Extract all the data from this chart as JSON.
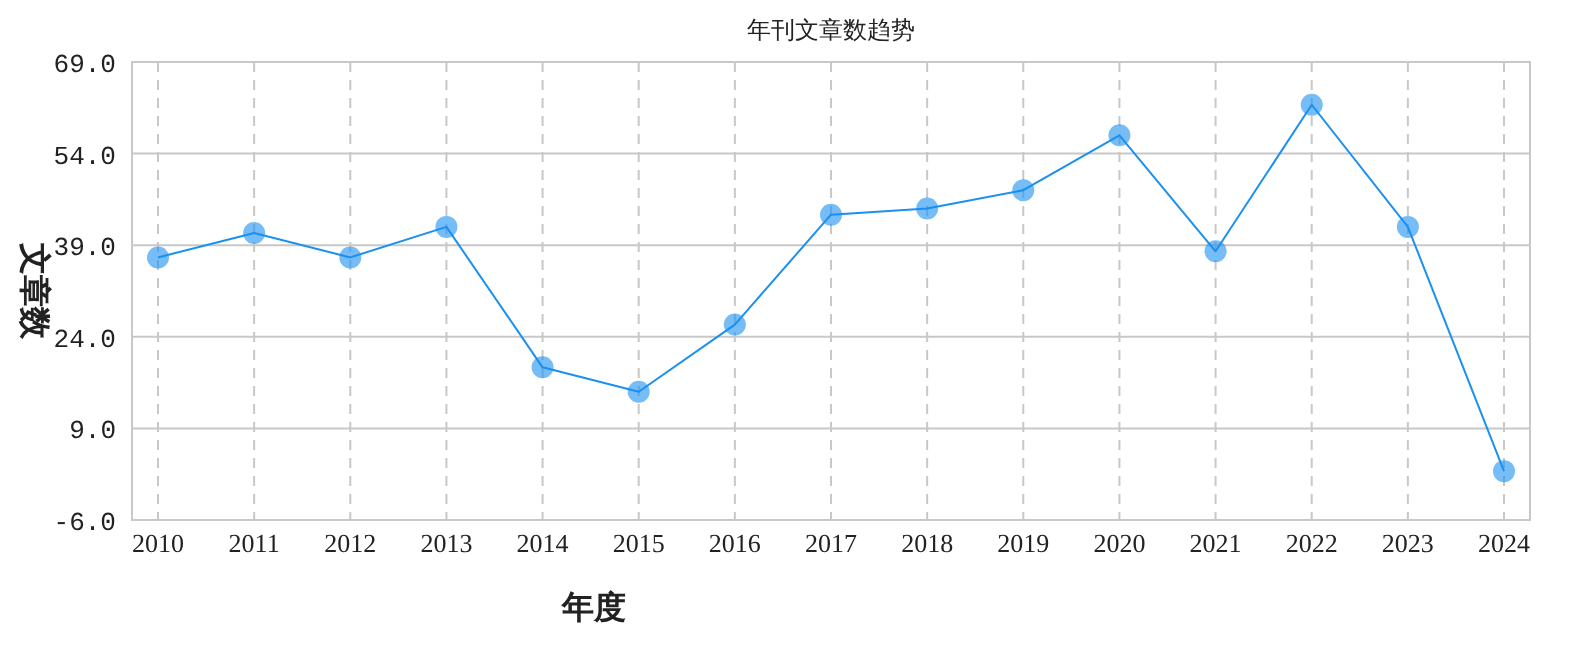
{
  "chart_data": {
    "type": "line",
    "title": "年刊文章数趋势",
    "xlabel": "年度",
    "ylabel": "文章数",
    "categories": [
      "2010",
      "2011",
      "2012",
      "2013",
      "2014",
      "2015",
      "2016",
      "2017",
      "2018",
      "2019",
      "2020",
      "2021",
      "2022",
      "2023",
      "2024"
    ],
    "series": [
      {
        "color": "#1a90f0",
        "values": [
          37,
          41,
          37,
          42,
          19,
          15,
          26,
          44,
          45,
          48,
          57,
          38,
          62,
          42,
          2
        ]
      }
    ],
    "ylim": [
      -6,
      69
    ],
    "yticks": [
      {
        "value": -6,
        "label": "-6.0"
      },
      {
        "value": 9,
        "label": "9.0"
      },
      {
        "value": 24,
        "label": "24.0"
      },
      {
        "value": 39,
        "label": "39.0"
      },
      {
        "value": 54,
        "label": "54.0"
      },
      {
        "value": 69,
        "label": "69.0"
      }
    ],
    "grid": true,
    "marker": "circle"
  }
}
